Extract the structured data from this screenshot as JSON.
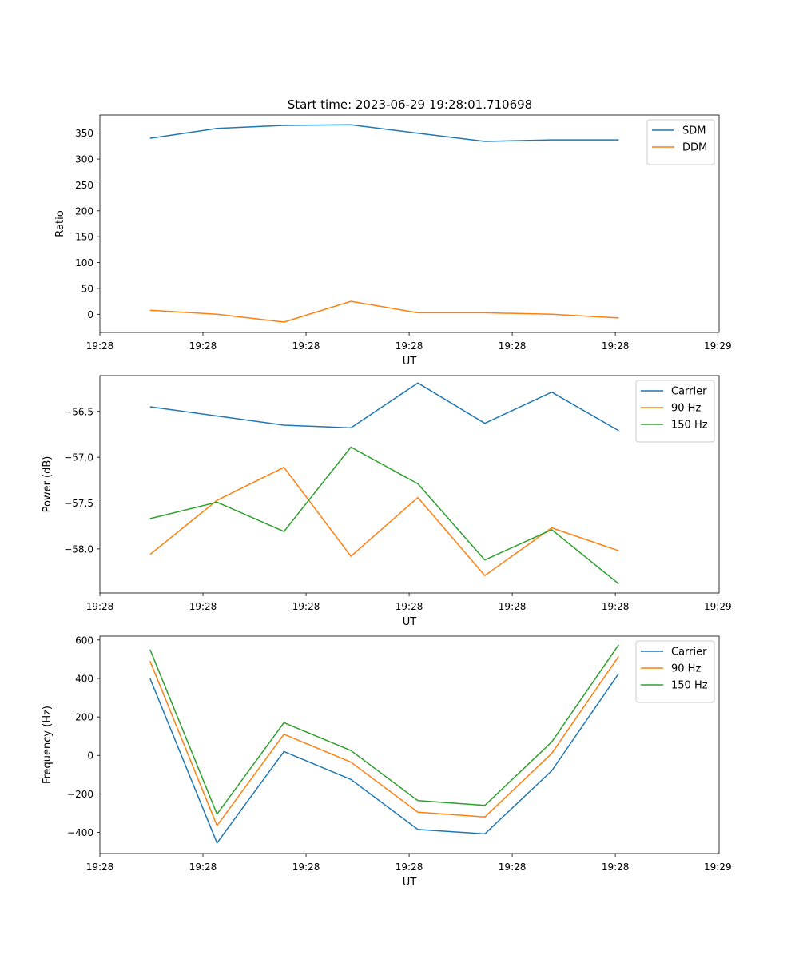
{
  "figure": {
    "title": "Start time: 2023-06-29 19:28:01.710698"
  },
  "chart_data": [
    {
      "type": "line",
      "title": "Start time: 2023-06-29 19:28:01.710698",
      "xlabel": "UT",
      "ylabel": "Ratio",
      "x_tick_labels": [
        "19:28",
        "19:28",
        "19:28",
        "19:28",
        "19:28",
        "19:28",
        "19:29"
      ],
      "xlim": [
        -0.75,
        8.5
      ],
      "x": [
        0,
        1,
        2,
        3,
        4,
        5,
        6,
        7
      ],
      "ylim": [
        -35,
        385
      ],
      "y_ticks": [
        0,
        50,
        100,
        150,
        200,
        250,
        300,
        350
      ],
      "legend_position": "top-right",
      "series": [
        {
          "name": "SDM",
          "color": "#1f77b4",
          "values": [
            340,
            359,
            365,
            366,
            350,
            334,
            337,
            337
          ]
        },
        {
          "name": "DDM",
          "color": "#ff7f0e",
          "values": [
            8,
            0,
            -15,
            25,
            3,
            3,
            0,
            -7
          ]
        }
      ]
    },
    {
      "type": "line",
      "xlabel": "UT",
      "ylabel": "Power (dB)",
      "x_tick_labels": [
        "19:28",
        "19:28",
        "19:28",
        "19:28",
        "19:28",
        "19:28",
        "19:29"
      ],
      "xlim": [
        -0.75,
        8.5
      ],
      "x": [
        0,
        1,
        2,
        3,
        4,
        5,
        6,
        7
      ],
      "ylim": [
        -58.48,
        -56.11
      ],
      "y_ticks": [
        -58.0,
        -57.5,
        -57.0,
        -56.5
      ],
      "y_tick_labels": [
        "−58.0",
        "−57.5",
        "−57.0",
        "−56.5"
      ],
      "legend_position": "top-right",
      "series": [
        {
          "name": "Carrier",
          "color": "#1f77b4",
          "values": [
            -56.45,
            -56.55,
            -56.65,
            -56.68,
            -56.19,
            -56.63,
            -56.29,
            -56.71
          ]
        },
        {
          "name": "90 Hz",
          "color": "#ff7f0e",
          "values": [
            -58.06,
            -57.47,
            -57.11,
            -58.08,
            -57.44,
            -58.29,
            -57.77,
            -58.02
          ]
        },
        {
          "name": "150 Hz",
          "color": "#2ca02c",
          "values": [
            -57.67,
            -57.49,
            -57.81,
            -56.89,
            -57.29,
            -58.12,
            -57.79,
            -58.38
          ]
        }
      ]
    },
    {
      "type": "line",
      "xlabel": "UT",
      "ylabel": "Frequency (Hz)",
      "x_tick_labels": [
        "19:28",
        "19:28",
        "19:28",
        "19:28",
        "19:28",
        "19:28",
        "19:29"
      ],
      "xlim": [
        -0.75,
        8.5
      ],
      "x": [
        0,
        1,
        2,
        3,
        4,
        5,
        6,
        7
      ],
      "ylim": [
        -510,
        620
      ],
      "y_ticks": [
        -400,
        -200,
        0,
        200,
        400,
        600
      ],
      "y_tick_labels": [
        "−400",
        "−200",
        "0",
        "200",
        "400",
        "600"
      ],
      "legend_position": "top-right",
      "series": [
        {
          "name": "Carrier",
          "color": "#1f77b4",
          "values": [
            400,
            -455,
            20,
            -125,
            -385,
            -408,
            -80,
            425
          ]
        },
        {
          "name": "90 Hz",
          "color": "#ff7f0e",
          "values": [
            490,
            -365,
            110,
            -35,
            -295,
            -320,
            10,
            515
          ]
        },
        {
          "name": "150 Hz",
          "color": "#2ca02c",
          "values": [
            550,
            -305,
            170,
            25,
            -235,
            -260,
            70,
            575
          ]
        }
      ]
    }
  ]
}
